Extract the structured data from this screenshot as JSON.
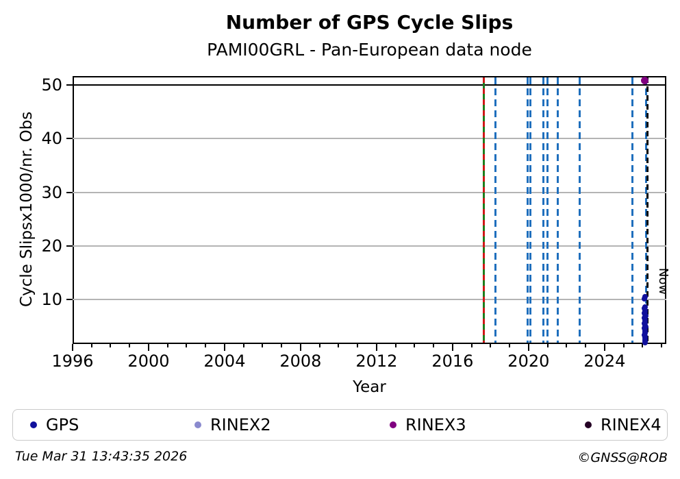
{
  "title": "Number of GPS Cycle Slips",
  "subtitle": "PAMI00GRL - Pan-European data node",
  "footer": {
    "timestamp": "Tue Mar 31 13:43:35 2026",
    "credit": "©GNSS@ROB"
  },
  "legend": {
    "position": "bottom",
    "items": [
      {
        "label": "GPS",
        "color": "#10109c"
      },
      {
        "label": "RINEX2",
        "color": "#8a8ace"
      },
      {
        "label": "RINEX3",
        "color": "#800080"
      },
      {
        "label": "RINEX4",
        "color": "#250025"
      }
    ]
  },
  "chart_data": {
    "type": "scatter",
    "title": "Number of GPS Cycle Slips",
    "subtitle": "PAMI00GRL - Pan-European data node",
    "xlabel": "Year",
    "ylabel": "Cycle Slipsx1000/nr. Obs",
    "xlim": [
      1996,
      2027.25
    ],
    "ylim": [
      1.7,
      51.7
    ],
    "x_major_ticks": [
      1996,
      2000,
      2004,
      2008,
      2012,
      2016,
      2020,
      2024
    ],
    "x_minor_tick_step": 1,
    "y_major_ticks": [
      10,
      20,
      30,
      40,
      50
    ],
    "grid": {
      "horizontal": true,
      "vertical": false,
      "color": "#b4b4b4"
    },
    "black_hline_y": 50,
    "series": [
      {
        "name": "GPS",
        "color": "#10109c",
        "points": [
          [
            2026.13,
            10.5
          ],
          [
            2026.11,
            10.2
          ],
          [
            2026.14,
            8.6
          ],
          [
            2026.11,
            8.3
          ],
          [
            2026.13,
            8.0
          ],
          [
            2026.15,
            7.7
          ],
          [
            2026.1,
            7.5
          ],
          [
            2026.13,
            7.2
          ],
          [
            2026.16,
            6.9
          ],
          [
            2026.11,
            6.6
          ],
          [
            2026.14,
            6.3
          ],
          [
            2026.12,
            6.0
          ],
          [
            2026.15,
            5.7
          ],
          [
            2026.1,
            5.5
          ],
          [
            2026.13,
            5.2
          ],
          [
            2026.16,
            4.9
          ],
          [
            2026.11,
            4.6
          ],
          [
            2026.14,
            4.3
          ],
          [
            2026.12,
            4.0
          ],
          [
            2026.15,
            3.7
          ],
          [
            2026.11,
            3.4
          ],
          [
            2026.13,
            3.1
          ],
          [
            2026.14,
            2.8
          ],
          [
            2026.12,
            2.5
          ],
          [
            2026.13,
            2.2
          ],
          [
            2026.12,
            2.0
          ]
        ]
      },
      {
        "name": "RINEX2",
        "color": "#8a8ace",
        "points": []
      },
      {
        "name": "RINEX3",
        "color": "#800080",
        "points": [
          [
            2026.13,
            50.9
          ]
        ]
      },
      {
        "name": "RINEX4",
        "color": "#250025",
        "points": []
      }
    ],
    "event_lines": {
      "green_solid": {
        "color": "#1d7d1d",
        "x": [
          2017.66
        ]
      },
      "red_dashed": {
        "color": "#cf1717",
        "x": [
          2017.66
        ]
      },
      "blue_dashed": {
        "color": "#1f6fbd",
        "x": [
          2018.27,
          2019.96,
          2020.11,
          2020.77,
          2021.01,
          2021.55,
          2022.69,
          2025.46,
          2026.17
        ]
      },
      "now_line": {
        "color": "#000000",
        "x": 2026.25,
        "label": "Now"
      }
    },
    "axis_color": "#000000"
  }
}
